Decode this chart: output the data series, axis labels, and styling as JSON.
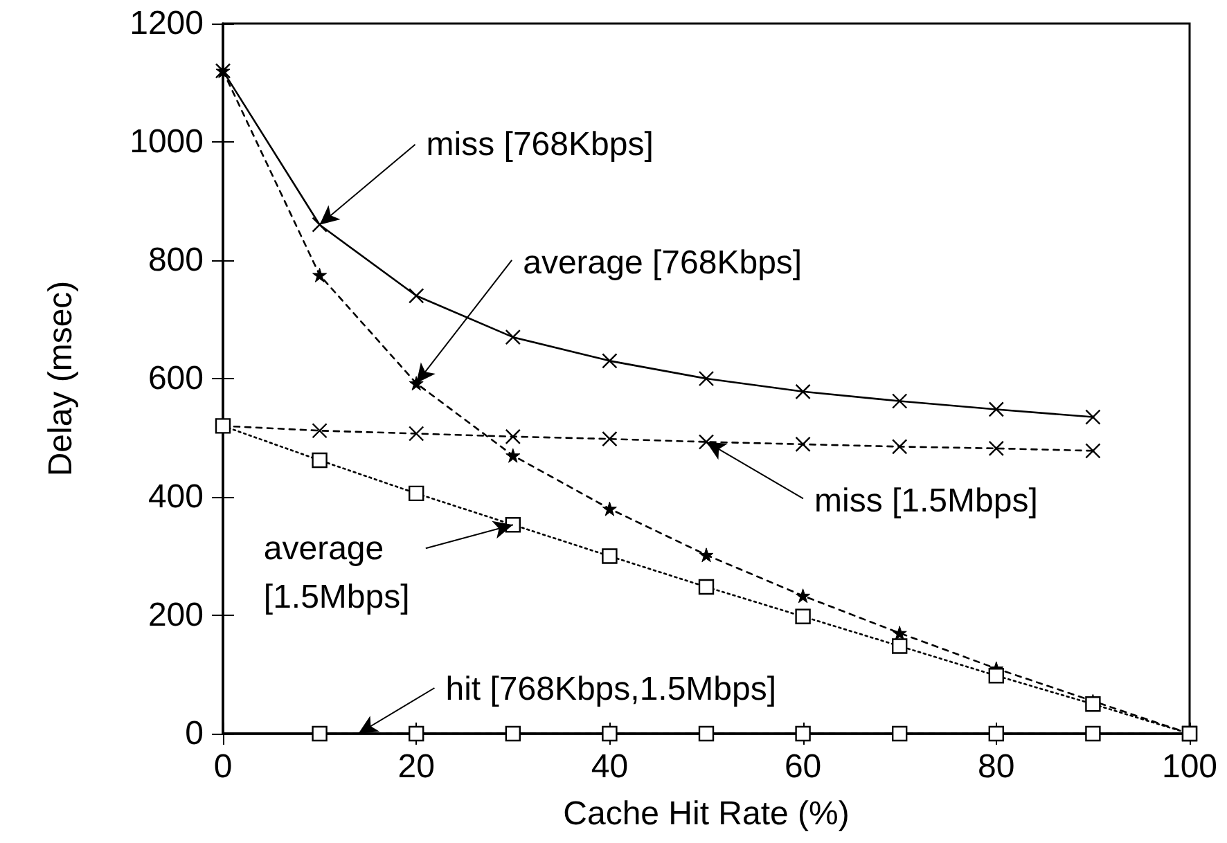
{
  "chart_data": {
    "type": "line",
    "xlabel": "Cache Hit Rate (%)",
    "ylabel": "Delay (msec)",
    "xlim": [
      0,
      100
    ],
    "xticks": [
      0,
      20,
      40,
      60,
      80,
      100
    ],
    "ylim": [
      0,
      1200
    ],
    "yticks": [
      0,
      200,
      400,
      600,
      800,
      1000,
      1200
    ],
    "grid": false,
    "series": [
      {
        "color": "#000000",
        "marker": "cross",
        "line_style": "solid",
        "x": [
          0,
          10,
          20,
          30,
          40,
          50,
          60,
          70,
          80,
          90
        ],
        "values": [
          1120,
          860,
          740,
          670,
          630,
          600,
          578,
          562,
          548,
          535
        ]
      },
      {
        "color": "#000000",
        "marker": "star",
        "line_style": "dashed",
        "x": [
          0,
          10,
          20,
          30,
          40,
          50,
          60,
          70,
          80,
          90,
          100
        ],
        "values": [
          1120,
          775,
          592,
          470,
          380,
          302,
          233,
          170,
          110,
          55,
          0
        ]
      },
      {
        "color": "#000000",
        "marker": "cross",
        "line_style": "dashed",
        "x": [
          0,
          10,
          20,
          30,
          40,
          50,
          60,
          70,
          80,
          90
        ],
        "values": [
          520,
          512,
          507,
          502,
          498,
          493,
          489,
          485,
          482,
          478
        ]
      },
      {
        "color": "#000000",
        "marker": "square",
        "line_style": "dotted",
        "x": [
          0,
          10,
          20,
          30,
          40,
          50,
          60,
          70,
          80,
          90,
          100
        ],
        "values": [
          520,
          462,
          406,
          353,
          300,
          248,
          198,
          148,
          98,
          50,
          0
        ]
      },
      {
        "color": "#000000",
        "marker": "square",
        "line_style": "dashed",
        "x": [
          10,
          20,
          30,
          40,
          50,
          60,
          70,
          80,
          90,
          100
        ],
        "values": [
          0,
          0,
          0,
          0,
          0,
          0,
          0,
          0,
          0,
          0
        ]
      }
    ],
    "annotations": [
      {
        "text": "miss [768Kbps]",
        "x": 10,
        "y": 860
      },
      {
        "text": "average [768Kbps]",
        "x": 20,
        "y": 592
      },
      {
        "text": "miss [1.5Mbps]",
        "x": 50,
        "y": 493
      },
      {
        "text": "average\n[1.5Mbps]",
        "x": 30,
        "y": 353
      },
      {
        "text": "hit [768Kbps,1.5Mbps]",
        "x": 14,
        "y": 0
      }
    ]
  }
}
